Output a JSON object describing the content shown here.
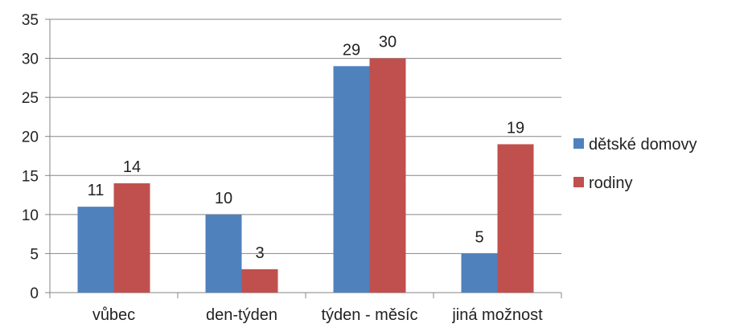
{
  "chart_data": {
    "type": "bar",
    "title": "",
    "xlabel": "",
    "ylabel": "",
    "categories": [
      "vůbec",
      "den-týden",
      "týden - měsíc",
      "jiná možnost"
    ],
    "series": [
      {
        "name": "dětské domovy",
        "values": [
          11,
          10,
          29,
          5
        ],
        "color": "#4F81BD"
      },
      {
        "name": "rodiny",
        "values": [
          14,
          3,
          30,
          19
        ],
        "color": "#C0504D"
      }
    ],
    "ylim": [
      0,
      35
    ],
    "yticks": [
      0,
      5,
      10,
      15,
      20,
      25,
      30,
      35
    ],
    "grid": true,
    "legend_position": "right",
    "data_labels": true
  }
}
